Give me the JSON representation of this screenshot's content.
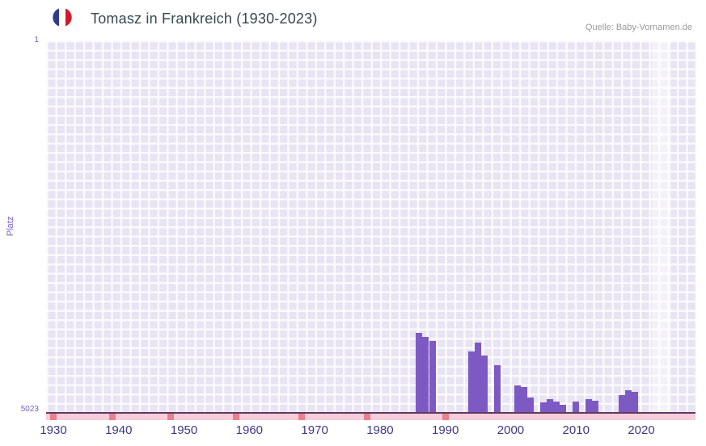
{
  "header": {
    "title": "Tomasz in Frankreich (1930-2023)",
    "source": "Quelle: Baby-Vornamen.de"
  },
  "chart_data": {
    "type": "bar",
    "title": "Tomasz in Frankreich (1930-2023)",
    "xlabel": "",
    "ylabel": "Platz",
    "y_axis": {
      "top_label": "1",
      "bottom_label": "5023",
      "min": 1,
      "max": 5023,
      "inverted": true
    },
    "x_ticks": [
      "1930",
      "1940",
      "1950",
      "1960",
      "1970",
      "1980",
      "1990",
      "2000",
      "2010",
      "2020"
    ],
    "x_range": [
      1929,
      2028
    ],
    "bars": [
      {
        "year": 1986,
        "rank": 3950
      },
      {
        "year": 1987,
        "rank": 4010
      },
      {
        "year": 1988,
        "rank": 4060
      },
      {
        "year": 1994,
        "rank": 4200
      },
      {
        "year": 1995,
        "rank": 4080
      },
      {
        "year": 1996,
        "rank": 4260
      },
      {
        "year": 1998,
        "rank": 4390
      },
      {
        "year": 2001,
        "rank": 4660
      },
      {
        "year": 2002,
        "rank": 4680
      },
      {
        "year": 2003,
        "rank": 4830
      },
      {
        "year": 2005,
        "rank": 4890
      },
      {
        "year": 2006,
        "rank": 4850
      },
      {
        "year": 2007,
        "rank": 4880
      },
      {
        "year": 2008,
        "rank": 4920
      },
      {
        "year": 2010,
        "rank": 4880
      },
      {
        "year": 2012,
        "rank": 4850
      },
      {
        "year": 2013,
        "rank": 4870
      },
      {
        "year": 2017,
        "rank": 4790
      },
      {
        "year": 2018,
        "rank": 4730
      },
      {
        "year": 2019,
        "rank": 4750
      }
    ],
    "baseline_marks": [
      1930,
      1939,
      1948,
      1958,
      1968,
      1978,
      1990
    ],
    "highlight_band": {
      "from": 2021.6,
      "to": 2024.6
    },
    "legend": "none",
    "grid": "on",
    "colors": {
      "bar": "#7d59c4",
      "unranked_strip": "#f6cdd9",
      "unranked_mark": "#ea7f8d",
      "plot_background": "#e8e4f3",
      "grid_line": "#ffffff",
      "axis_line": "#5f3a60",
      "x_tick_label": "#3e3884",
      "y_tick_label": "#7a5fc7",
      "title_text": "#36474f",
      "source_text": "#9b9b9b",
      "highlight_band": "rgba(255,255,255,0.5)"
    }
  }
}
